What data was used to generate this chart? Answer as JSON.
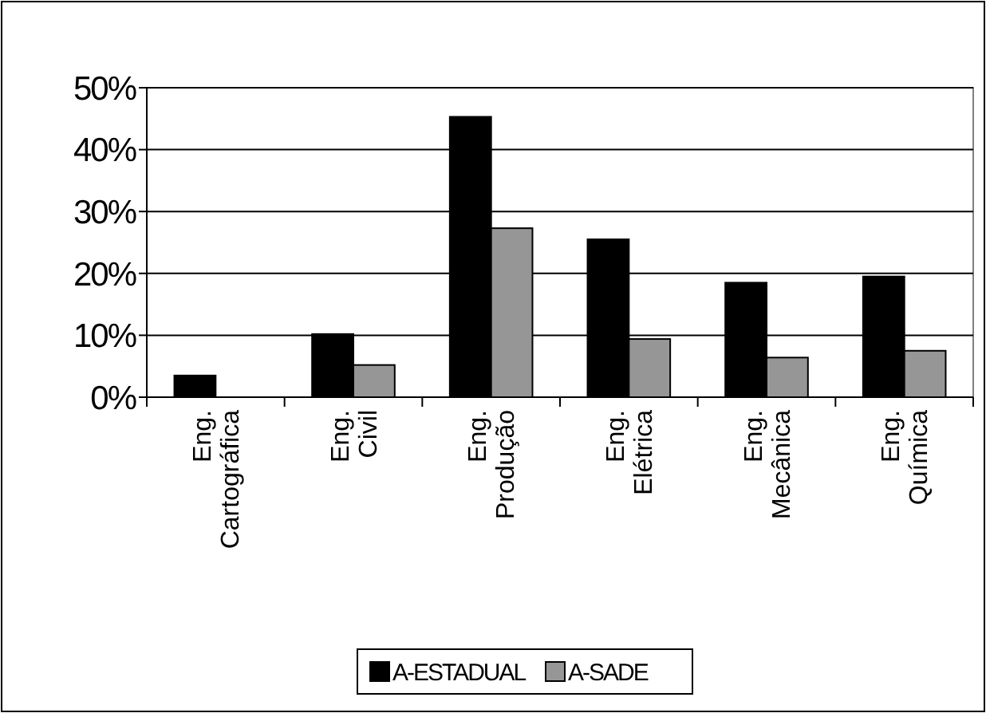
{
  "chart_data": {
    "type": "bar",
    "categories": [
      "Eng.\nCartográfica",
      "Eng.\nCivil",
      "Eng.\nProdução",
      "Eng.\nElétrica",
      "Eng.\nMecânica",
      "Eng.\nQuímica"
    ],
    "series": [
      {
        "name": "A-ESTADUAL",
        "color": "#000000",
        "values": [
          3.5,
          10.2,
          45.3,
          25.5,
          18.5,
          19.5
        ]
      },
      {
        "name": "A-SADE",
        "color": "#969696",
        "values": [
          0,
          5.2,
          27.3,
          9.4,
          6.4,
          7.5
        ]
      }
    ],
    "ylim": [
      0,
      50
    ],
    "yticks": [
      {
        "value": 0,
        "label": "0%"
      },
      {
        "value": 10,
        "label": "10%"
      },
      {
        "value": 20,
        "label": "20%"
      },
      {
        "value": 30,
        "label": "30%"
      },
      {
        "value": 40,
        "label": "40%"
      },
      {
        "value": 50,
        "label": "50%"
      }
    ],
    "grid": "y",
    "legend": "bottom"
  }
}
